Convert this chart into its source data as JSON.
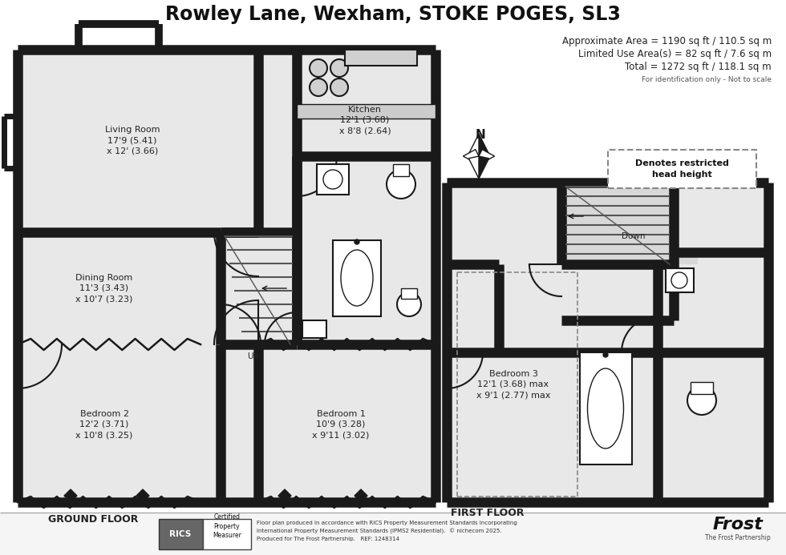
{
  "title": "Rowley Lane, Wexham, STOKE POGES, SL3",
  "area_line1": "Approximate Area = 1190 sq ft / 110.5 sq m",
  "area_line2": "Limited Use Area(s) = 82 sq ft / 7.6 sq m",
  "area_line3": "Total = 1272 sq ft / 118.1 sq m",
  "area_line4": "For identification only - Not to scale",
  "ground_floor_label": "GROUND FLOOR",
  "first_floor_label": "FIRST FLOOR",
  "denotes_label": "Denotes restricted\nhead height",
  "footer_line1": "Floor plan produced in accordance with RICS Property Measurement Standards incorporating",
  "footer_line2": "International Property Measurement Standards (IPMS2 Residential).  © nichecom 2025.",
  "footer_line3": "Produced for The Frost Partnership.   REF: 1248314",
  "wall_color": "#1a1a1a",
  "wall_fill": "#e8e8e8",
  "bg_color": "#ffffff",
  "wall_lw": 9
}
